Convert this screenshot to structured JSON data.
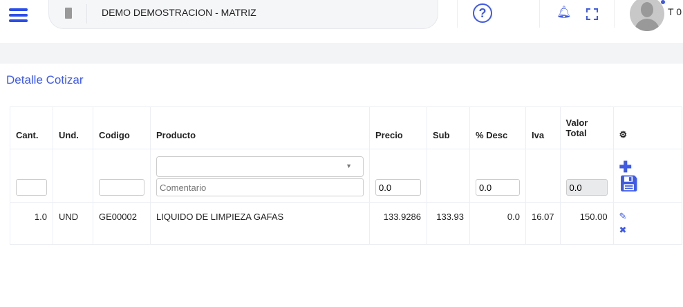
{
  "header": {
    "company": "DEMO DEMOSTRACION - MATRIZ",
    "user": "T 0"
  },
  "page_title": "Detalle Cotizar",
  "table": {
    "columns": [
      "Cant.",
      "Und.",
      "Codigo",
      "Producto",
      "Precio",
      "Sub",
      "% Desc",
      "Iva",
      "Valor Total"
    ],
    "form": {
      "cantidad": "",
      "codigo": "",
      "producto": "",
      "comentario_placeholder": "Comentario",
      "precio": "0.0",
      "desc": "0.0",
      "valor_total": "0.0"
    },
    "rows": [
      {
        "cant": "1.0",
        "und": "UND",
        "codigo": "GE00002",
        "producto": "LIQUIDO DE LIMPIEZA GAFAS",
        "precio": "133.9286",
        "sub": "133.93",
        "desc": "0.0",
        "iva": "16.07",
        "total": "150.00"
      }
    ]
  },
  "colors": {
    "accent": "#3e5ae6"
  }
}
